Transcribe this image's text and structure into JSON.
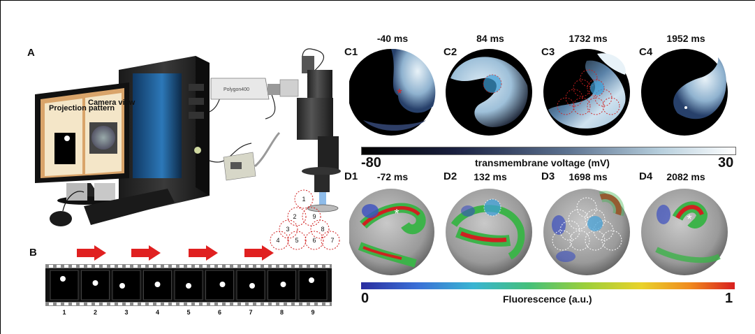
{
  "panels": {
    "A": "A",
    "B": "B",
    "C1": "C1",
    "C2": "C2",
    "C3": "C3",
    "C4": "C4",
    "D1": "D1",
    "D2": "D2",
    "D3": "D3",
    "D4": "D4"
  },
  "computer": {
    "screen_left_label": "Projection pattern",
    "screen_right_label": "Camera view",
    "projector_label": "Polygon400"
  },
  "pattern_numbers": [
    "1",
    "2",
    "3",
    "4",
    "5",
    "6",
    "7",
    "8",
    "9"
  ],
  "filmstrip_numbers": [
    "1",
    "2",
    "3",
    "4",
    "5",
    "6",
    "7",
    "8",
    "9"
  ],
  "voltage_times": [
    "-40 ms",
    "84 ms",
    "1732 ms",
    "1952 ms"
  ],
  "fluor_times": [
    "-72 ms",
    "132 ms",
    "1698 ms",
    "2082 ms"
  ],
  "voltage_bar": {
    "min": "-80",
    "max": "30",
    "label": "transmembrane voltage (mV)"
  },
  "fluor_bar": {
    "min": "0",
    "max": "1",
    "label": "Fluorescence (a.u.)"
  },
  "colors": {
    "arrow": "#e02020",
    "dashed_red": "#d02020",
    "stim": "#3fa0d8"
  }
}
